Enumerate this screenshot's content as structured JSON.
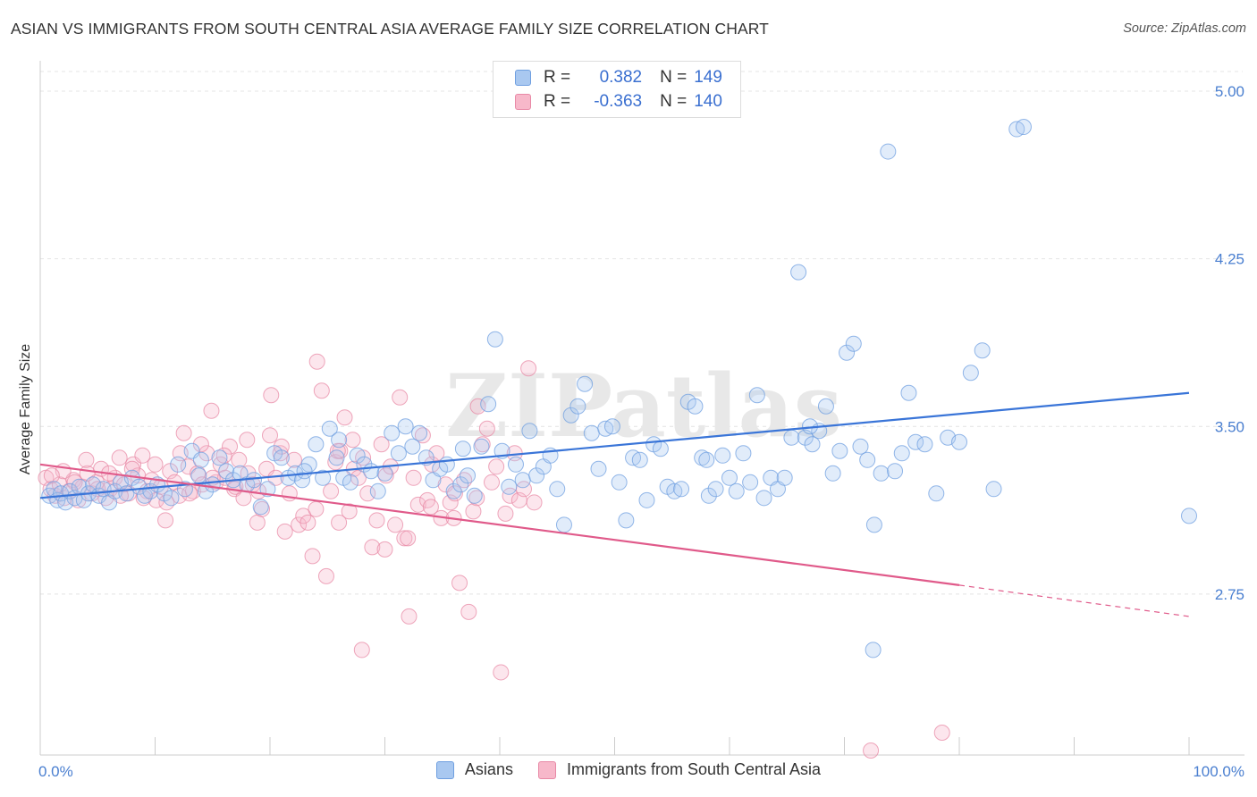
{
  "title": "ASIAN VS IMMIGRANTS FROM SOUTH CENTRAL ASIA AVERAGE FAMILY SIZE CORRELATION CHART",
  "source": "Source: ZipAtlas.com",
  "watermark": "ZIPatlas",
  "legend_top": {
    "rows": [
      {
        "r_label": "R =",
        "r_value": "0.382",
        "n_label": "N =",
        "n_value": "149",
        "color": "#a9c8f0",
        "border": "#6f9fe0"
      },
      {
        "r_label": "R =",
        "r_value": "-0.363",
        "n_label": "N =",
        "n_value": "140",
        "color": "#f7b8ca",
        "border": "#e889a6"
      }
    ]
  },
  "legend_bottom": [
    {
      "label": "Asians",
      "color": "#a9c8f0",
      "border": "#6f9fe0"
    },
    {
      "label": "Immigrants from South Central Asia",
      "color": "#f7b8ca",
      "border": "#e889a6"
    }
  ],
  "chart_data": {
    "type": "scatter",
    "ylabel": "Average Family Size",
    "x_range": [
      0,
      100
    ],
    "y_range": [
      2.03,
      5.12
    ],
    "x_tick_labels": [
      "0.0%",
      "100.0%"
    ],
    "y_ticks": [
      2.75,
      3.5,
      4.25,
      5.0
    ],
    "y_tick_labels": [
      "2.75",
      "3.50",
      "4.25",
      "5.00"
    ],
    "grid": "horizontal-dashed",
    "colors": {
      "asians": "#3a75d8",
      "immigrants": "#e05a8a"
    },
    "trendlines": [
      {
        "series": "Asians",
        "x": [
          0,
          100
        ],
        "y": [
          3.18,
          3.65
        ]
      },
      {
        "series": "Immigrants from South Central Asia",
        "x": [
          0,
          80
        ],
        "y": [
          3.33,
          2.79
        ],
        "dashed_to": [
          100,
          2.65
        ]
      }
    ],
    "series": [
      {
        "name": "Asians",
        "points": [
          [
            0.8,
            3.19
          ],
          [
            1.2,
            3.22
          ],
          [
            1.5,
            3.17
          ],
          [
            1.8,
            3.2
          ],
          [
            2.2,
            3.16
          ],
          [
            2.6,
            3.21
          ],
          [
            3.0,
            3.18
          ],
          [
            3.4,
            3.23
          ],
          [
            3.8,
            3.17
          ],
          [
            4.2,
            3.2
          ],
          [
            4.6,
            3.24
          ],
          [
            5.1,
            3.19
          ],
          [
            5.5,
            3.22
          ],
          [
            6.0,
            3.16
          ],
          [
            6.5,
            3.21
          ],
          [
            7.0,
            3.25
          ],
          [
            7.5,
            3.2
          ],
          [
            8.0,
            3.27
          ],
          [
            8.6,
            3.23
          ],
          [
            9.1,
            3.19
          ],
          [
            9.6,
            3.21
          ],
          [
            10.2,
            3.24
          ],
          [
            10.8,
            3.2
          ],
          [
            11.4,
            3.18
          ],
          [
            12.0,
            3.33
          ],
          [
            12.6,
            3.22
          ],
          [
            13.2,
            3.39
          ],
          [
            13.8,
            3.28
          ],
          [
            14.4,
            3.21
          ],
          [
            15.0,
            3.24
          ],
          [
            15.6,
            3.36
          ],
          [
            16.2,
            3.3
          ],
          [
            16.8,
            3.26
          ],
          [
            17.4,
            3.29
          ],
          [
            18.0,
            3.24
          ],
          [
            18.6,
            3.26
          ],
          [
            19.2,
            3.14
          ],
          [
            19.8,
            3.22
          ],
          [
            20.4,
            3.38
          ],
          [
            21.0,
            3.36
          ],
          [
            21.6,
            3.27
          ],
          [
            22.2,
            3.29
          ],
          [
            22.8,
            3.26
          ],
          [
            23.4,
            3.33
          ],
          [
            24.0,
            3.42
          ],
          [
            24.6,
            3.27
          ],
          [
            25.2,
            3.49
          ],
          [
            25.8,
            3.36
          ],
          [
            26.4,
            3.27
          ],
          [
            27.0,
            3.25
          ],
          [
            27.6,
            3.37
          ],
          [
            28.2,
            3.33
          ],
          [
            28.8,
            3.3
          ],
          [
            29.4,
            3.21
          ],
          [
            30.0,
            3.29
          ],
          [
            30.6,
            3.47
          ],
          [
            31.2,
            3.38
          ],
          [
            31.8,
            3.5
          ],
          [
            32.4,
            3.41
          ],
          [
            33.0,
            3.47
          ],
          [
            33.6,
            3.36
          ],
          [
            34.2,
            3.26
          ],
          [
            34.8,
            3.31
          ],
          [
            35.4,
            3.33
          ],
          [
            36.0,
            3.21
          ],
          [
            36.6,
            3.24
          ],
          [
            37.2,
            3.28
          ],
          [
            37.8,
            3.19
          ],
          [
            38.4,
            3.41
          ],
          [
            39.0,
            3.6
          ],
          [
            39.6,
            3.89
          ],
          [
            40.2,
            3.39
          ],
          [
            40.8,
            3.23
          ],
          [
            41.4,
            3.33
          ],
          [
            42.0,
            3.26
          ],
          [
            42.6,
            3.48
          ],
          [
            43.2,
            3.28
          ],
          [
            43.8,
            3.32
          ],
          [
            44.4,
            3.37
          ],
          [
            45.0,
            3.22
          ],
          [
            45.6,
            3.06
          ],
          [
            46.2,
            3.55
          ],
          [
            46.8,
            3.59
          ],
          [
            47.4,
            3.69
          ],
          [
            48.0,
            3.47
          ],
          [
            48.6,
            3.31
          ],
          [
            49.2,
            3.49
          ],
          [
            49.8,
            3.5
          ],
          [
            50.4,
            3.25
          ],
          [
            51.0,
            3.08
          ],
          [
            51.6,
            3.36
          ],
          [
            52.2,
            3.35
          ],
          [
            52.8,
            3.17
          ],
          [
            53.4,
            3.42
          ],
          [
            54.0,
            3.4
          ],
          [
            54.6,
            3.23
          ],
          [
            55.2,
            3.21
          ],
          [
            55.8,
            3.22
          ],
          [
            56.4,
            3.61
          ],
          [
            57.0,
            3.59
          ],
          [
            57.6,
            3.36
          ],
          [
            58.2,
            3.19
          ],
          [
            58.8,
            3.22
          ],
          [
            59.4,
            3.37
          ],
          [
            60.0,
            3.27
          ],
          [
            60.6,
            3.21
          ],
          [
            61.2,
            3.38
          ],
          [
            61.8,
            3.25
          ],
          [
            62.4,
            3.64
          ],
          [
            63.0,
            3.18
          ],
          [
            63.6,
            3.27
          ],
          [
            64.2,
            3.22
          ],
          [
            64.8,
            3.27
          ],
          [
            65.4,
            3.45
          ],
          [
            66.0,
            4.19
          ],
          [
            66.6,
            3.45
          ],
          [
            67.2,
            3.42
          ],
          [
            67.8,
            3.48
          ],
          [
            68.4,
            3.59
          ],
          [
            69.0,
            3.29
          ],
          [
            69.6,
            3.39
          ],
          [
            70.2,
            3.83
          ],
          [
            70.8,
            3.87
          ],
          [
            71.4,
            3.41
          ],
          [
            72.0,
            3.35
          ],
          [
            72.6,
            3.06
          ],
          [
            73.2,
            3.29
          ],
          [
            73.8,
            4.73
          ],
          [
            74.4,
            3.3
          ],
          [
            75.0,
            3.38
          ],
          [
            75.6,
            3.65
          ],
          [
            76.2,
            3.43
          ],
          [
            77.0,
            3.42
          ],
          [
            78.0,
            3.2
          ],
          [
            79.0,
            3.45
          ],
          [
            80.0,
            3.43
          ],
          [
            81.0,
            3.74
          ],
          [
            82.0,
            3.84
          ],
          [
            83.0,
            3.22
          ],
          [
            85.0,
            4.83
          ],
          [
            85.6,
            4.84
          ],
          [
            100.0,
            3.1
          ],
          [
            67.0,
            3.5
          ],
          [
            58.0,
            3.35
          ],
          [
            36.8,
            3.4
          ],
          [
            26.0,
            3.44
          ],
          [
            14.0,
            3.35
          ],
          [
            23.0,
            3.3
          ],
          [
            72.5,
            2.5
          ]
        ]
      },
      {
        "name": "Immigrants from South Central Asia",
        "points": [
          [
            0.5,
            3.27
          ],
          [
            0.9,
            3.22
          ],
          [
            1.3,
            3.19
          ],
          [
            1.7,
            3.24
          ],
          [
            2.1,
            3.18
          ],
          [
            2.5,
            3.21
          ],
          [
            2.9,
            3.26
          ],
          [
            3.3,
            3.17
          ],
          [
            3.7,
            3.23
          ],
          [
            4.1,
            3.29
          ],
          [
            4.5,
            3.2
          ],
          [
            4.9,
            3.25
          ],
          [
            5.3,
            3.31
          ],
          [
            5.7,
            3.18
          ],
          [
            6.1,
            3.22
          ],
          [
            6.5,
            3.27
          ],
          [
            6.9,
            3.36
          ],
          [
            7.3,
            3.24
          ],
          [
            7.7,
            3.2
          ],
          [
            8.1,
            3.33
          ],
          [
            8.5,
            3.28
          ],
          [
            8.9,
            3.37
          ],
          [
            9.3,
            3.21
          ],
          [
            9.7,
            3.26
          ],
          [
            10.1,
            3.17
          ],
          [
            10.5,
            3.23
          ],
          [
            10.9,
            3.08
          ],
          [
            11.3,
            3.3
          ],
          [
            11.7,
            3.25
          ],
          [
            12.1,
            3.19
          ],
          [
            12.5,
            3.47
          ],
          [
            12.9,
            3.32
          ],
          [
            13.3,
            3.21
          ],
          [
            13.7,
            3.29
          ],
          [
            14.1,
            3.24
          ],
          [
            14.5,
            3.38
          ],
          [
            14.9,
            3.57
          ],
          [
            15.3,
            3.25
          ],
          [
            15.7,
            3.33
          ],
          [
            16.1,
            3.27
          ],
          [
            16.5,
            3.41
          ],
          [
            16.9,
            3.22
          ],
          [
            17.3,
            3.35
          ],
          [
            17.7,
            3.18
          ],
          [
            18.1,
            3.29
          ],
          [
            18.5,
            3.24
          ],
          [
            18.9,
            3.07
          ],
          [
            19.3,
            3.13
          ],
          [
            19.7,
            3.31
          ],
          [
            20.1,
            3.64
          ],
          [
            20.5,
            3.27
          ],
          [
            20.9,
            3.38
          ],
          [
            21.3,
            3.03
          ],
          [
            21.7,
            3.2
          ],
          [
            22.1,
            3.35
          ],
          [
            22.5,
            3.06
          ],
          [
            22.9,
            3.1
          ],
          [
            23.3,
            3.07
          ],
          [
            23.7,
            2.92
          ],
          [
            24.1,
            3.79
          ],
          [
            24.5,
            3.66
          ],
          [
            24.9,
            2.83
          ],
          [
            25.3,
            3.21
          ],
          [
            25.7,
            3.34
          ],
          [
            26.1,
            3.39
          ],
          [
            26.5,
            3.54
          ],
          [
            26.9,
            3.12
          ],
          [
            27.3,
            3.31
          ],
          [
            27.7,
            3.27
          ],
          [
            28.1,
            3.36
          ],
          [
            28.5,
            3.2
          ],
          [
            28.9,
            2.96
          ],
          [
            29.3,
            3.08
          ],
          [
            29.7,
            3.42
          ],
          [
            30.1,
            3.28
          ],
          [
            30.5,
            3.32
          ],
          [
            30.9,
            3.06
          ],
          [
            31.3,
            3.63
          ],
          [
            31.7,
            3.0
          ],
          [
            32.1,
            2.65
          ],
          [
            32.5,
            3.27
          ],
          [
            32.9,
            3.15
          ],
          [
            33.3,
            3.46
          ],
          [
            33.7,
            3.17
          ],
          [
            34.1,
            3.33
          ],
          [
            34.5,
            3.38
          ],
          [
            34.9,
            3.09
          ],
          [
            35.3,
            3.24
          ],
          [
            35.7,
            3.16
          ],
          [
            36.1,
            3.2
          ],
          [
            36.5,
            2.8
          ],
          [
            36.9,
            3.26
          ],
          [
            37.3,
            2.67
          ],
          [
            37.7,
            3.12
          ],
          [
            38.1,
            3.59
          ],
          [
            38.5,
            3.42
          ],
          [
            38.9,
            3.49
          ],
          [
            39.3,
            3.25
          ],
          [
            39.7,
            3.32
          ],
          [
            40.1,
            2.4
          ],
          [
            40.5,
            3.11
          ],
          [
            40.9,
            3.19
          ],
          [
            41.3,
            3.38
          ],
          [
            41.7,
            3.17
          ],
          [
            42.1,
            3.22
          ],
          [
            42.5,
            3.76
          ],
          [
            43.0,
            3.16
          ],
          [
            27.2,
            3.44
          ],
          [
            25.9,
            3.39
          ],
          [
            21.0,
            3.41
          ],
          [
            20.0,
            3.46
          ],
          [
            18.0,
            3.44
          ],
          [
            16.0,
            3.37
          ],
          [
            14.0,
            3.42
          ],
          [
            12.2,
            3.38
          ],
          [
            10.0,
            3.33
          ],
          [
            8.0,
            3.31
          ],
          [
            6.0,
            3.29
          ],
          [
            4.0,
            3.35
          ],
          [
            2.0,
            3.3
          ],
          [
            1.0,
            3.28
          ],
          [
            3.0,
            3.25
          ],
          [
            5.0,
            3.22
          ],
          [
            7.0,
            3.19
          ],
          [
            9.0,
            3.18
          ],
          [
            11.0,
            3.16
          ],
          [
            13.0,
            3.2
          ],
          [
            15.0,
            3.27
          ],
          [
            17.0,
            3.23
          ],
          [
            19.0,
            3.21
          ],
          [
            24.0,
            3.13
          ],
          [
            26.0,
            3.07
          ],
          [
            28.0,
            2.5
          ],
          [
            30.0,
            2.95
          ],
          [
            32.0,
            3.0
          ],
          [
            34.0,
            3.14
          ],
          [
            36.0,
            3.09
          ],
          [
            38.0,
            3.18
          ],
          [
            72.3,
            2.05
          ],
          [
            78.5,
            2.13
          ]
        ]
      }
    ]
  }
}
